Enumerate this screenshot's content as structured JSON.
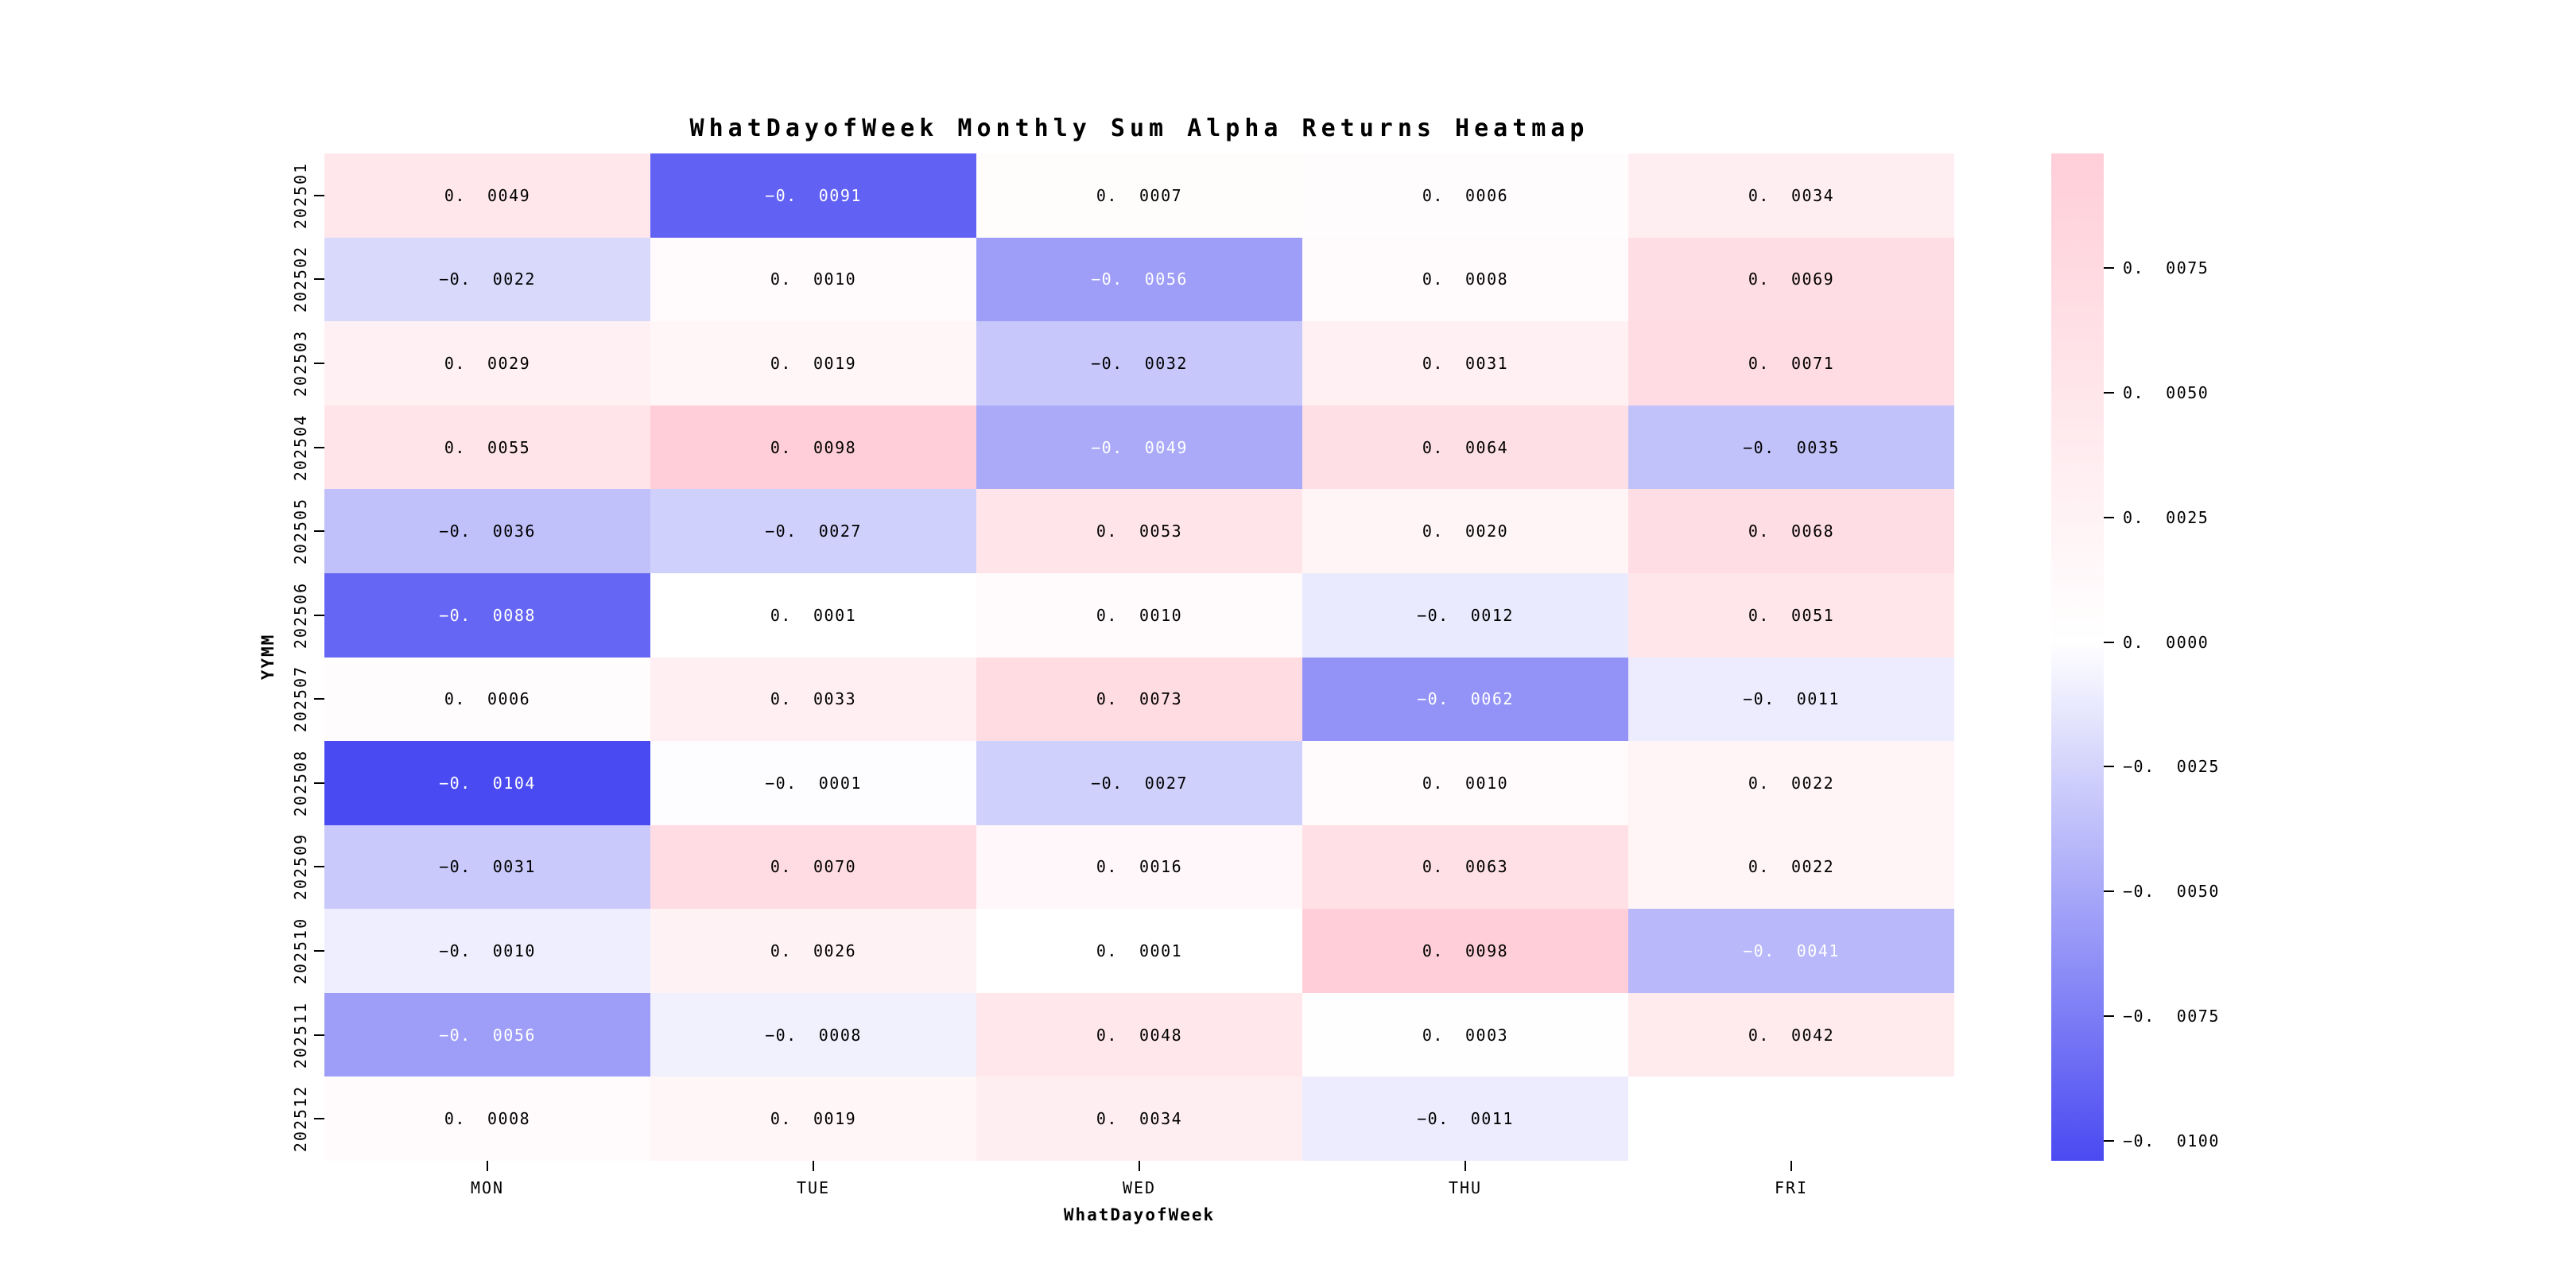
{
  "chart_data": {
    "type": "heatmap",
    "title": "WhatDayofWeek Monthly Sum Alpha Returns Heatmap",
    "xlabel": "WhatDayofWeek",
    "ylabel": "YYMM",
    "columns": [
      "MON",
      "TUE",
      "WED",
      "THU",
      "FRI"
    ],
    "rows": [
      "202501",
      "202502",
      "202503",
      "202504",
      "202505",
      "202506",
      "202507",
      "202508",
      "202509",
      "202510",
      "202511",
      "202512"
    ],
    "values": [
      [
        0.0049,
        -0.0091,
        0.0007,
        0.0006,
        0.0034
      ],
      [
        -0.0022,
        0.001,
        -0.0056,
        0.0008,
        0.0069
      ],
      [
        0.0029,
        0.0019,
        -0.0032,
        0.0031,
        0.0071
      ],
      [
        0.0055,
        0.0098,
        -0.0049,
        0.0064,
        -0.0035
      ],
      [
        -0.0036,
        -0.0027,
        0.0053,
        0.002,
        0.0068
      ],
      [
        -0.0088,
        0.0001,
        0.001,
        -0.0012,
        0.0051
      ],
      [
        0.0006,
        0.0033,
        0.0073,
        -0.0062,
        -0.0011
      ],
      [
        -0.0104,
        -0.0001,
        -0.0027,
        0.001,
        0.0022
      ],
      [
        -0.0031,
        0.007,
        0.0016,
        0.0063,
        0.0022
      ],
      [
        -0.001,
        0.0026,
        0.0001,
        0.0098,
        -0.0041
      ],
      [
        -0.0056,
        -0.0008,
        0.0048,
        0.0003,
        0.0042
      ],
      [
        0.0008,
        0.0019,
        0.0034,
        -0.0011,
        null
      ]
    ],
    "vmin": -0.0104,
    "vmax": 0.0098,
    "colorbar_ticks": [
      0.0075,
      0.005,
      0.0025,
      0.0,
      -0.0025,
      -0.005,
      -0.0075,
      -0.01
    ],
    "colorbar_position": "right",
    "grid": false,
    "colors": {
      "max_pink": "#ffced8",
      "mid_white": "#ffffff",
      "min_blue": "#4a4af2",
      "empty_cell": "#ffffff",
      "annotation_dark": "#000000",
      "annotation_light": "#ffffff"
    }
  }
}
